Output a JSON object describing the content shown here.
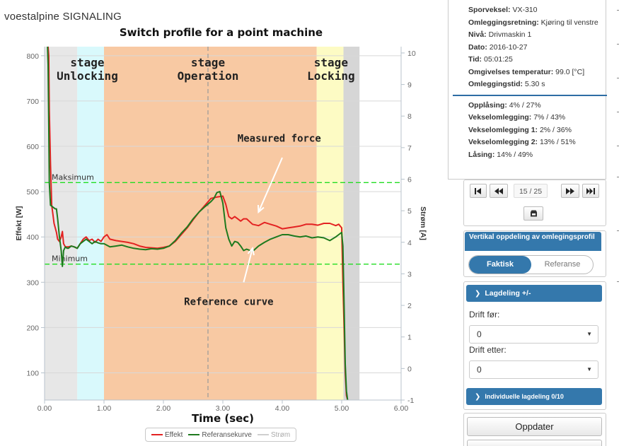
{
  "brand": {
    "part1": "voestalpine",
    "part2": "SIGNALING"
  },
  "chart_data": {
    "type": "line",
    "title": "Switch profile for a point machine",
    "xlabel": "Time (sec)",
    "ylabel": "Effekt [W]",
    "y2label": "Strøm [A]",
    "xlim": [
      0,
      6
    ],
    "ylim": [
      40,
      820
    ],
    "y2lim": [
      -1,
      10.2
    ],
    "x_ticks": [
      "0.00",
      "1.00",
      "2.00",
      "3.00",
      "4.00",
      "5.00",
      "6.00"
    ],
    "y_ticks": [
      "100",
      "200",
      "300",
      "400",
      "500",
      "600",
      "700",
      "800"
    ],
    "y2_ticks": [
      "-1",
      "0",
      "1",
      "2",
      "3",
      "4",
      "5",
      "6",
      "7",
      "8",
      "9",
      "10"
    ],
    "stages": [
      {
        "label_top": "stage",
        "label_bottom": "Unlocking",
        "x0": 0.55,
        "x1": 1.0,
        "color": "#d9f9fc",
        "label_x": 0.72
      },
      {
        "label_top": "stage",
        "label_bottom": "Operation",
        "x0": 1.0,
        "x1": 4.58,
        "color": "#f8c9a3",
        "label_x": 2.75
      },
      {
        "label_top": "stage",
        "label_bottom": "Locking",
        "x0": 4.58,
        "x1": 5.03,
        "color": "#fdfbc4",
        "label_x": 4.82
      }
    ],
    "gray_bands": [
      {
        "x0": 0.0,
        "x1": 0.55,
        "color": "#e7e7e7"
      },
      {
        "x0": 5.03,
        "x1": 5.3,
        "color": "#d6d6d6"
      }
    ],
    "dashed_vline_x": 2.75,
    "thresholds": [
      {
        "name": "Maksimum",
        "value": 520
      },
      {
        "name": "Minimum",
        "value": 340
      }
    ],
    "annotations": [
      {
        "text": "Measured force",
        "x": 3.95,
        "y": 610
      },
      {
        "text": "Reference curve",
        "x": 3.1,
        "y": 250
      }
    ],
    "legend_position": "bottom",
    "series": [
      {
        "name": "Effekt",
        "color": "#e32222",
        "x": [
          0.06,
          0.07,
          0.08,
          0.1,
          0.12,
          0.14,
          0.16,
          0.18,
          0.2,
          0.22,
          0.25,
          0.28,
          0.3,
          0.32,
          0.35,
          0.4,
          0.45,
          0.5,
          0.55,
          0.6,
          0.65,
          0.7,
          0.75,
          0.8,
          0.85,
          0.9,
          0.95,
          1.0,
          1.05,
          1.1,
          1.2,
          1.3,
          1.4,
          1.5,
          1.6,
          1.7,
          1.8,
          1.9,
          2.0,
          2.1,
          2.2,
          2.3,
          2.4,
          2.5,
          2.6,
          2.7,
          2.8,
          2.9,
          3.0,
          3.05,
          3.1,
          3.15,
          3.2,
          3.25,
          3.3,
          3.35,
          3.4,
          3.5,
          3.6,
          3.7,
          3.8,
          3.9,
          4.0,
          4.1,
          4.2,
          4.3,
          4.4,
          4.5,
          4.6,
          4.7,
          4.8,
          4.9,
          4.95,
          5.0,
          5.02,
          5.04,
          5.06,
          5.08,
          5.1
        ],
        "y": [
          820,
          800,
          680,
          560,
          470,
          450,
          430,
          420,
          410,
          395,
          390,
          400,
          412,
          385,
          378,
          378,
          380,
          378,
          375,
          385,
          395,
          400,
          392,
          395,
          388,
          395,
          390,
          400,
          405,
          395,
          392,
          390,
          388,
          385,
          380,
          377,
          376,
          375,
          377,
          380,
          390,
          405,
          420,
          438,
          455,
          470,
          485,
          488,
          490,
          472,
          445,
          440,
          445,
          440,
          435,
          440,
          440,
          428,
          425,
          432,
          428,
          424,
          418,
          420,
          422,
          424,
          428,
          428,
          426,
          430,
          430,
          425,
          428,
          420,
          300,
          200,
          100,
          50,
          40
        ]
      },
      {
        "name": "Referansekurve",
        "color": "#1e7a1e",
        "x": [
          0.05,
          0.06,
          0.07,
          0.08,
          0.1,
          0.12,
          0.15,
          0.18,
          0.2,
          0.22,
          0.25,
          0.28,
          0.3,
          0.32,
          0.35,
          0.38,
          0.4,
          0.45,
          0.5,
          0.55,
          0.6,
          0.65,
          0.7,
          0.75,
          0.8,
          0.85,
          0.9,
          0.95,
          1.0,
          1.1,
          1.2,
          1.3,
          1.4,
          1.5,
          1.6,
          1.7,
          1.8,
          1.9,
          2.0,
          2.1,
          2.2,
          2.3,
          2.4,
          2.5,
          2.6,
          2.7,
          2.8,
          2.85,
          2.9,
          2.95,
          3.0,
          3.05,
          3.1,
          3.15,
          3.2,
          3.25,
          3.3,
          3.35,
          3.4,
          3.5,
          3.6,
          3.7,
          3.8,
          3.9,
          4.0,
          4.1,
          4.2,
          4.3,
          4.4,
          4.5,
          4.6,
          4.7,
          4.8,
          4.9,
          4.95,
          5.0,
          5.02,
          5.04,
          5.06,
          5.08,
          5.1
        ],
        "y": [
          820,
          780,
          650,
          520,
          470,
          468,
          465,
          462,
          462,
          440,
          400,
          370,
          335,
          370,
          378,
          375,
          375,
          380,
          378,
          375,
          385,
          390,
          395,
          390,
          385,
          390,
          387,
          385,
          385,
          378,
          380,
          382,
          378,
          375,
          373,
          372,
          374,
          373,
          375,
          380,
          392,
          408,
          422,
          440,
          455,
          467,
          478,
          485,
          498,
          500,
          475,
          420,
          395,
          380,
          390,
          388,
          380,
          370,
          373,
          368,
          380,
          388,
          395,
          400,
          405,
          405,
          402,
          400,
          402,
          398,
          400,
          398,
          392,
          400,
          405,
          410,
          380,
          250,
          120,
          60,
          40
        ]
      },
      {
        "name": "Strøm",
        "color": "#cfcfcf",
        "x": [],
        "y": []
      }
    ]
  },
  "info": {
    "rows": [
      {
        "label": "Sporveksel:",
        "value": "VX-310"
      },
      {
        "label": "Omleggingsretning:",
        "value": "Kjøring til venstre"
      },
      {
        "label": "Nivå:",
        "value": "Drivmaskin 1"
      },
      {
        "label": "Dato:",
        "value": "2016-10-27"
      },
      {
        "label": "Tid:",
        "value": "05:01:25"
      },
      {
        "label": "Omgivelses temperatur:",
        "value": "99.0 [°C]"
      },
      {
        "label": "Omleggingstid:",
        "value": "5.30 s"
      }
    ],
    "stage_rows": [
      {
        "label": "Opplåsing:",
        "value": "4% / 27%"
      },
      {
        "label": "Vekselomlegging:",
        "value": "7% / 43%"
      },
      {
        "label": "Vekselomlegging 1:",
        "value": "2% / 36%"
      },
      {
        "label": "Vekselomlegging 2:",
        "value": "13% / 51%"
      },
      {
        "label": "Låsing:",
        "value": "14% / 49%"
      }
    ]
  },
  "nav": {
    "first": "⏮",
    "prev": "⏪",
    "page": "15 / 25",
    "next": "⏩",
    "last": "⏭",
    "save_icon": "save-icon"
  },
  "vsplit": {
    "title": "Vertikal oppdeling av omlegingsprofil",
    "opt_active": "Faktisk",
    "opt_inactive": "Referanse"
  },
  "lagdeling": {
    "title": "Lagdeling +/-",
    "drift_for_label": "Drift før:",
    "drift_for_value": "0",
    "drift_etter_label": "Drift etter:",
    "drift_etter_value": "0",
    "individual_title": "Individuelle lagdeling 0/10"
  },
  "update_label": "Oppdater",
  "colors": {
    "accent": "#3478ac",
    "threshold": "#22dd22"
  }
}
